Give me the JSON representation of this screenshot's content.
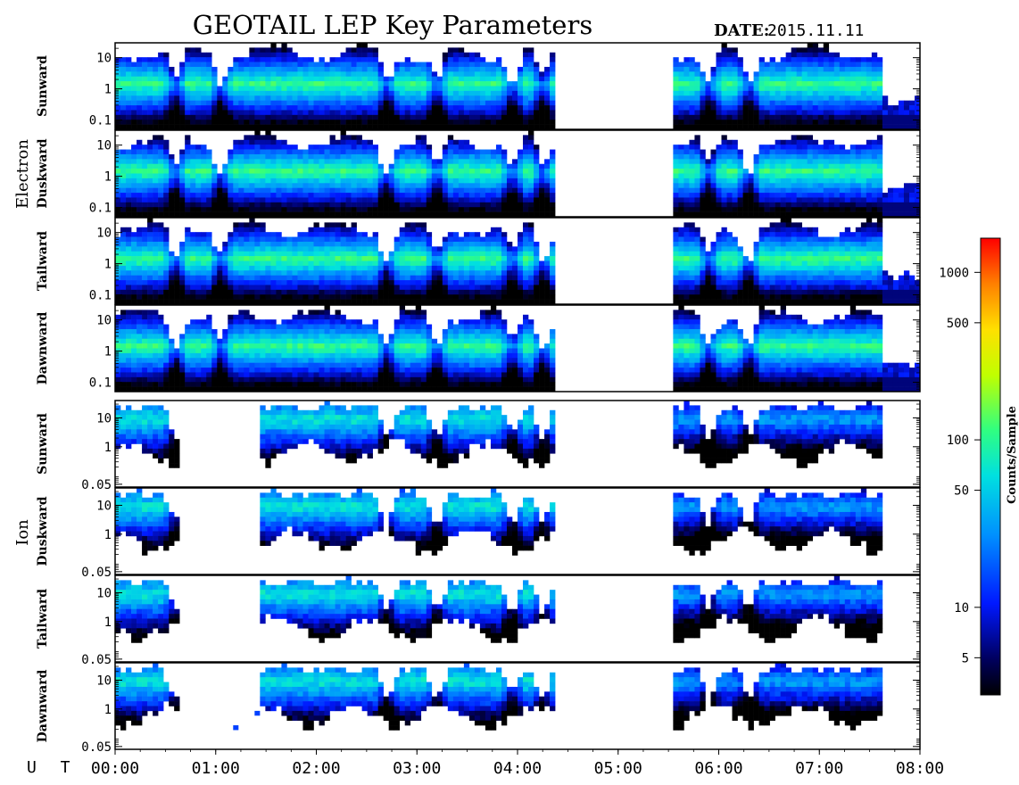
{
  "header": {
    "title": "GEOTAIL LEP Key Parameters",
    "date_label": "DATE:",
    "date_value": "2015.11.11"
  },
  "groups": [
    {
      "name": "Electron",
      "panels": [
        "Sunward",
        "Duskward",
        "Tailward",
        "Dawnward"
      ],
      "yticks": [
        "10",
        "1",
        "0.1"
      ],
      "yrange": [
        0.05,
        30
      ],
      "log_scale": true
    },
    {
      "name": "Ion",
      "panels": [
        "Sunward",
        "Duskward",
        "Tailward",
        "Dawnward"
      ],
      "yticks": [
        "10",
        "1",
        "0.05"
      ],
      "yrange": [
        0.04,
        40
      ],
      "log_scale": true
    }
  ],
  "time_axis": {
    "label": "U T",
    "ticks": [
      "00:00",
      "01:00",
      "02:00",
      "03:00",
      "04:00",
      "05:00",
      "06:00",
      "07:00",
      "08:00"
    ],
    "range_hours": [
      0,
      8
    ]
  },
  "data_coverage": {
    "segments_hours": [
      [
        0.0,
        4.35
      ],
      [
        5.55,
        7.6
      ]
    ],
    "electron_sparse_after_hours": 7.6,
    "ion_sparse_ranges_hours": [
      [
        0.65,
        1.45
      ]
    ]
  },
  "colorbar": {
    "label": "Counts/Sample",
    "ticks": [
      "1000",
      "500",
      "100",
      "50",
      "10",
      "5"
    ],
    "tick_values": [
      1000,
      500,
      100,
      50,
      10,
      5
    ],
    "range": [
      3,
      1600
    ],
    "log_scale": true,
    "colors": [
      "#000000",
      "#000088",
      "#0033ff",
      "#00aaff",
      "#00ffcc",
      "#55ff55",
      "#ffff00",
      "#ff8800",
      "#ff0000"
    ]
  },
  "chart_data": {
    "type": "heatmap",
    "title": "GEOTAIL LEP Key Parameters",
    "xlabel": "U T",
    "x_ticks": [
      "00:00",
      "01:00",
      "02:00",
      "03:00",
      "04:00",
      "05:00",
      "06:00",
      "07:00",
      "08:00"
    ],
    "colorbar_label": "Counts/Sample",
    "colorbar_ticks": [
      1000,
      500,
      100,
      50,
      10,
      5
    ],
    "panels": [
      "Electron Sunward",
      "Electron Duskward",
      "Electron Tailward",
      "Electron Dawnward",
      "Ion Sunward",
      "Ion Duskward",
      "Ion Tailward",
      "Ion Dawnward"
    ]
  }
}
